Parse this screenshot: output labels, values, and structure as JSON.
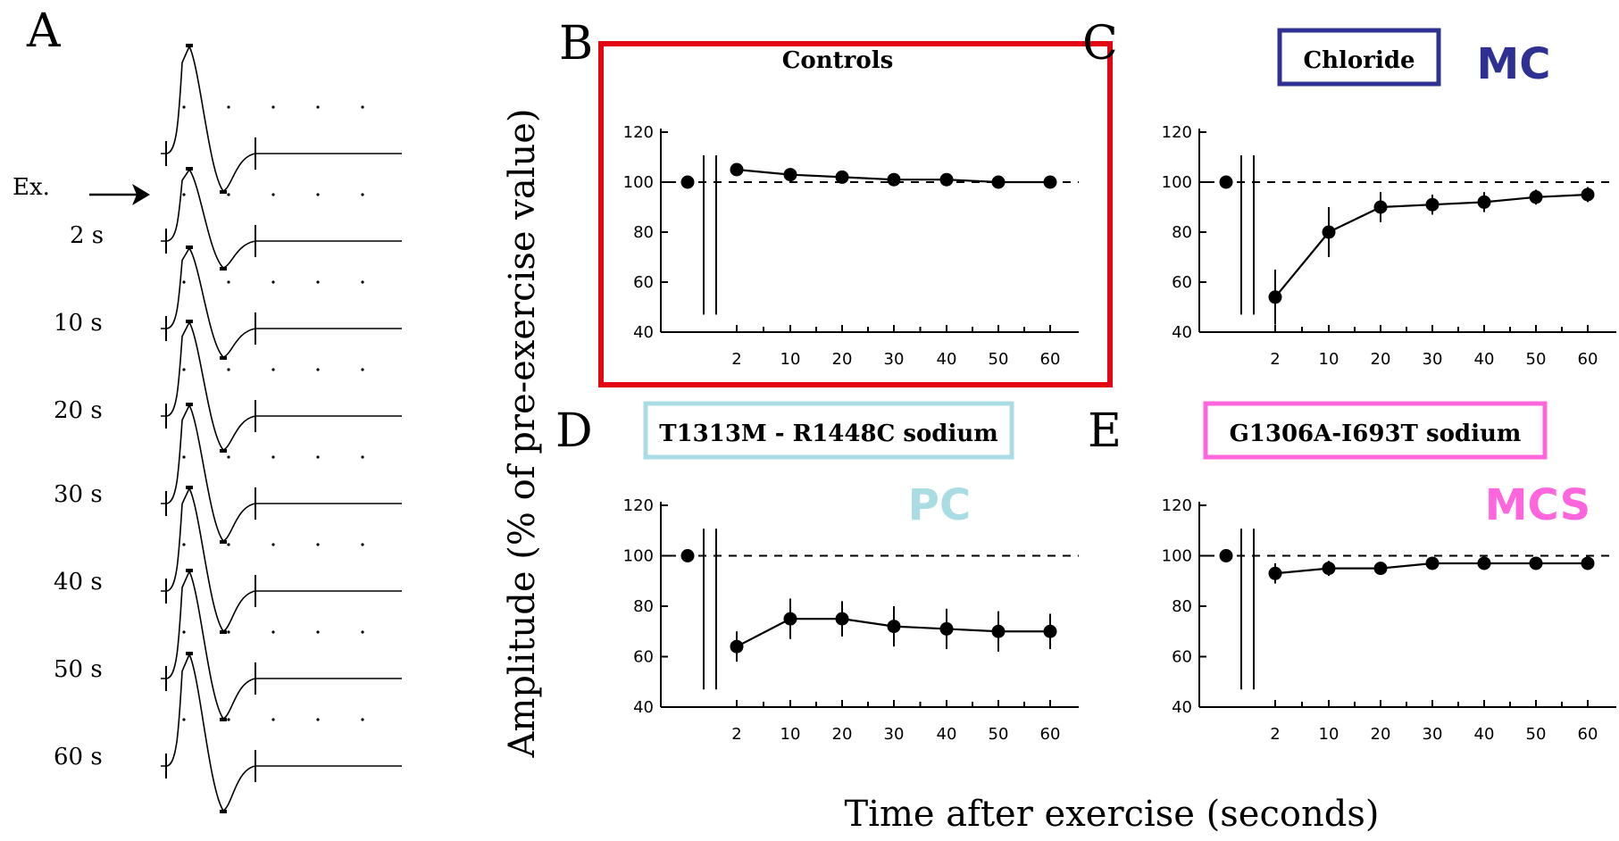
{
  "panel_a": {
    "letter": "A",
    "ex_label": "Ex.",
    "trace_labels": [
      "2 s",
      "10 s",
      "20 s",
      "30 s",
      "40 s",
      "50 s",
      "60 s"
    ]
  },
  "y_axis_title": "Amplitude (% of pre-exercise value)",
  "x_axis_title": "Time after exercise (seconds)",
  "chart_data": [
    {
      "type": "line",
      "panel": "B",
      "title": "Controls",
      "title_box_color": "",
      "group_label": "",
      "highlight_color": "#e30613",
      "x": [
        "2",
        "10",
        "20",
        "30",
        "40",
        "50",
        "60"
      ],
      "pre_value": 100,
      "values": [
        105,
        103,
        102,
        101,
        101,
        100,
        100
      ],
      "errors": [
        0,
        0,
        0,
        0,
        0,
        0,
        0
      ],
      "yticks": [
        40,
        60,
        80,
        100,
        120
      ],
      "ylim": [
        40,
        120
      ],
      "reference_line": 100
    },
    {
      "type": "line",
      "panel": "C",
      "title": "Chloride",
      "title_box_color": "#2e3192",
      "group_label": "MC",
      "group_color": "#2e3192",
      "x": [
        "2",
        "10",
        "20",
        "30",
        "40",
        "50",
        "60"
      ],
      "pre_value": 100,
      "values": [
        54,
        80,
        90,
        91,
        92,
        94,
        95
      ],
      "errors": [
        11,
        10,
        6,
        4,
        4,
        3,
        3
      ],
      "yticks": [
        40,
        60,
        80,
        100,
        120
      ],
      "ylim": [
        40,
        120
      ],
      "reference_line": 100
    },
    {
      "type": "line",
      "panel": "D",
      "title": "T1313M - R1448C sodium",
      "title_box_color": "#a9dce3",
      "group_label": "PC",
      "group_color": "#a9dce3",
      "x": [
        "2",
        "10",
        "20",
        "30",
        "40",
        "50",
        "60"
      ],
      "pre_value": 100,
      "values": [
        64,
        75,
        75,
        72,
        71,
        70,
        70
      ],
      "errors": [
        6,
        8,
        7,
        8,
        8,
        8,
        7
      ],
      "yticks": [
        40,
        60,
        80,
        100,
        120
      ],
      "ylim": [
        40,
        120
      ],
      "reference_line": 100
    },
    {
      "type": "line",
      "panel": "E",
      "title": "G1306A-I693T sodium",
      "title_box_color": "#ff66dd",
      "group_label": "MCS",
      "group_color": "#ff66dd",
      "x": [
        "2",
        "10",
        "20",
        "30",
        "40",
        "50",
        "60"
      ],
      "pre_value": 100,
      "values": [
        93,
        95,
        95,
        97,
        97,
        97,
        97
      ],
      "errors": [
        4,
        3,
        2,
        2,
        2,
        1,
        1
      ],
      "yticks": [
        40,
        60,
        80,
        100,
        120
      ],
      "ylim": [
        40,
        120
      ],
      "reference_line": 100
    }
  ]
}
